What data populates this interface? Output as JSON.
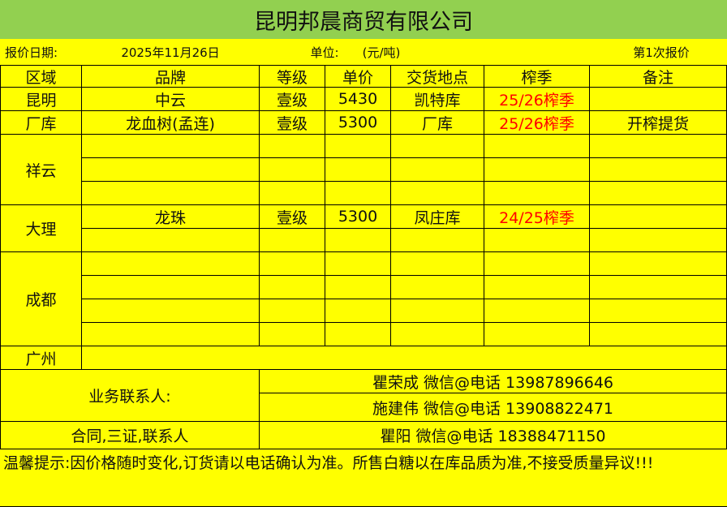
{
  "title": "昆明邦晨商贸有限公司",
  "info": {
    "date_label": "报价日期:",
    "date": "2025年11月26日",
    "unit_label": "单位:",
    "unit": "(元/吨)",
    "quote_no": "第1次报价"
  },
  "headers": [
    "区域",
    "品牌",
    "等级",
    "单价",
    "交货地点",
    "榨季",
    "备注"
  ],
  "regions": {
    "kunming": "昆明",
    "factory": "厂库",
    "xiangyun": "祥云",
    "dali": "大理",
    "chengdu": "成都",
    "guangzhou": "广州"
  },
  "rows": [
    {
      "brand": "中云",
      "grade": "壹级",
      "price": "5430",
      "location": "凯特库",
      "season": "25/26榨季",
      "note": ""
    },
    {
      "brand": "龙血树(孟连)",
      "grade": "壹级",
      "price": "5300",
      "location": "厂库",
      "season": "25/26榨季",
      "note": "开榨提货"
    },
    {
      "brand": "龙珠",
      "grade": "壹级",
      "price": "5300",
      "location": "凤庄库",
      "season": "24/25榨季",
      "note": ""
    }
  ],
  "colors": {
    "title_bg": "#92d050",
    "sheet_bg": "#ffff00",
    "season_text": "#ff0000"
  },
  "contacts": {
    "label": "业务联系人:",
    "people": [
      "瞿荣成  微信@电话 13987896646",
      "施建伟  微信@电话 13908822471"
    ],
    "contract_label": "合同,三证,联系人",
    "contract_person": "瞿阳  微信@电话 18388471150"
  },
  "tip": "温馨提示:因价格随时变化,订货请以电话确认为准。所售白糖以在库品质为准,不接受质量异议!!!"
}
